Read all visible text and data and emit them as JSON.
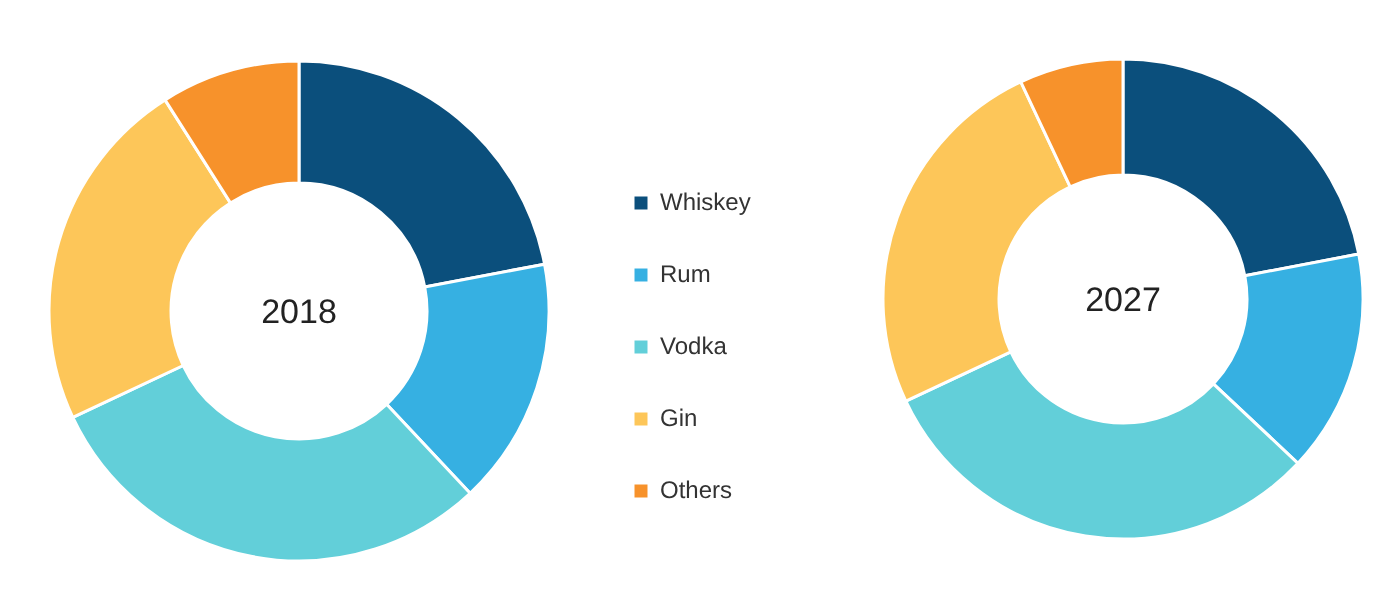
{
  "chart_data": [
    {
      "type": "donut",
      "title": "2018",
      "categories": [
        "Whiskey",
        "Rum",
        "Vodka",
        "Gin",
        "Others"
      ],
      "values": [
        22,
        16,
        30,
        23,
        9
      ],
      "colors": [
        "#0b4f7c",
        "#36b0e2",
        "#62cfd9",
        "#fdc659",
        "#f7922b"
      ],
      "legend": "right"
    },
    {
      "type": "donut",
      "title": "2027",
      "categories": [
        null,
        null,
        null,
        null,
        null
      ],
      "values": [
        22,
        15,
        31,
        25,
        7
      ],
      "colors": [
        "#0b4f7c",
        "#36b0e2",
        "#62cfd9",
        "#fdc659",
        "#f7922b"
      ]
    }
  ]
}
